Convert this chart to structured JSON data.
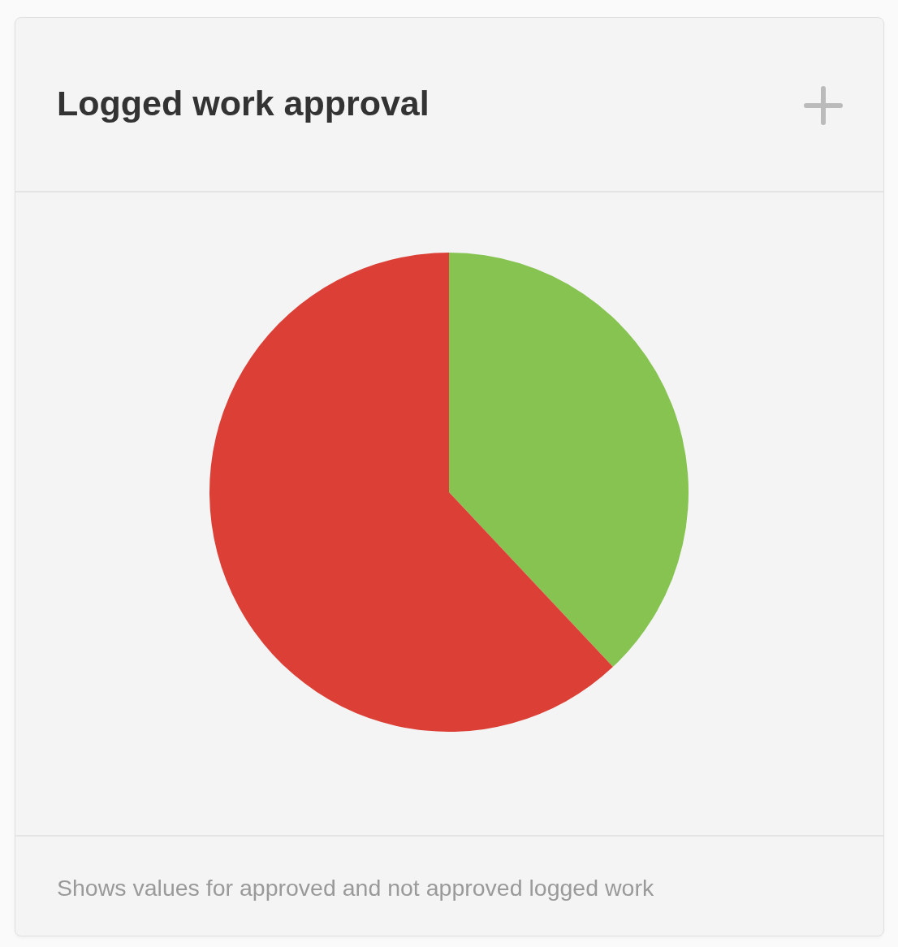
{
  "chart_data": {
    "type": "pie",
    "title": "Logged work approval",
    "categories": [
      null,
      null
    ],
    "values": [
      38,
      62
    ],
    "colors": [
      "#86c351",
      "#dc3f35"
    ],
    "legend": false,
    "annotations": [
      "Shows values for approved and not approved logged work"
    ]
  }
}
